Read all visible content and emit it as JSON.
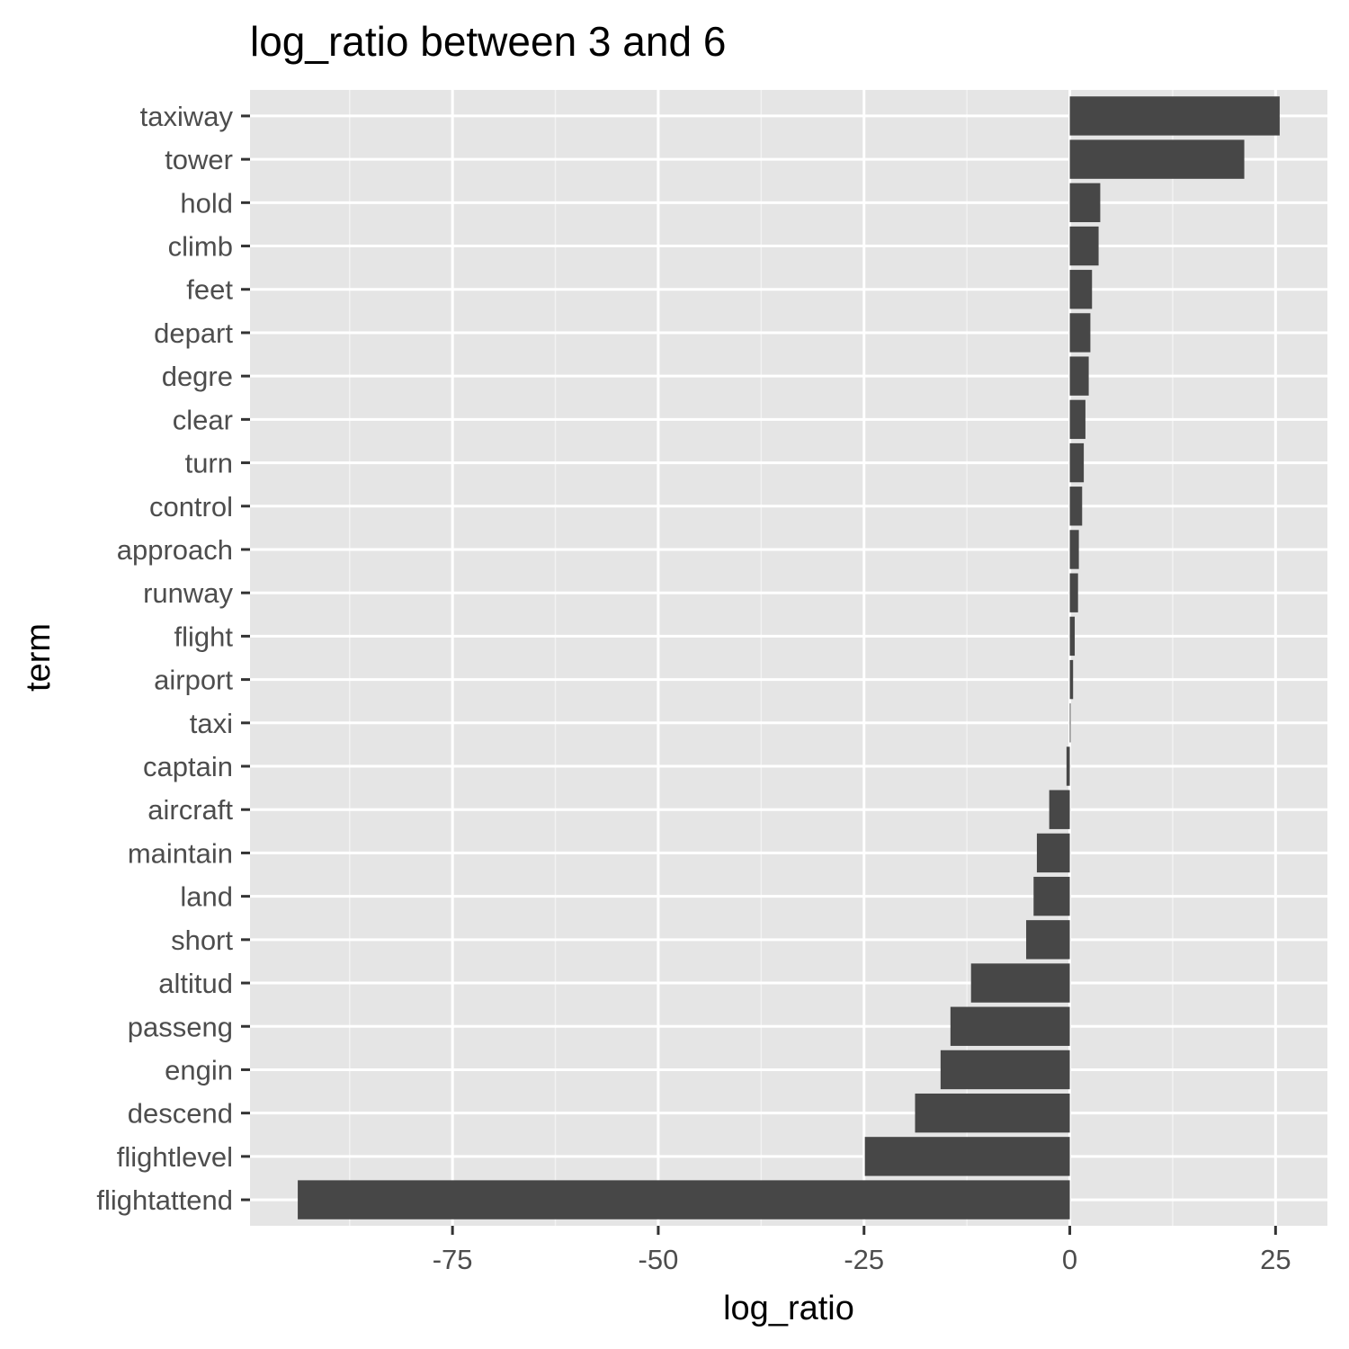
{
  "chart_data": {
    "type": "bar",
    "orientation": "horizontal",
    "title": "log_ratio between 3 and 6",
    "xlabel": "log_ratio",
    "ylabel": "term",
    "xlim": [
      -99.6,
      31.3
    ],
    "xticks": [
      -75,
      -50,
      -25,
      0,
      25
    ],
    "xtick_labels": [
      "-75",
      "-50",
      "-25",
      "0",
      "25"
    ],
    "grid": true,
    "legend": "none",
    "categories": [
      "taxiway",
      "tower",
      "hold",
      "climb",
      "feet",
      "depart",
      "degre",
      "clear",
      "turn",
      "control",
      "approach",
      "runway",
      "flight",
      "airport",
      "taxi",
      "captain",
      "aircraft",
      "maintain",
      "land",
      "short",
      "altitud",
      "passeng",
      "engin",
      "descend",
      "flightlevel",
      "flightattend"
    ],
    "values": [
      25.5,
      21.2,
      3.7,
      3.5,
      2.7,
      2.5,
      2.3,
      1.9,
      1.7,
      1.5,
      1.1,
      1.0,
      0.6,
      0.4,
      0.1,
      -0.4,
      -2.5,
      -4.0,
      -4.4,
      -5.3,
      -12.0,
      -14.5,
      -15.7,
      -18.8,
      -24.9,
      -93.8
    ],
    "colors": {
      "bar": "#474747",
      "panel": "#e5e5e5",
      "grid_major": "#ffffff",
      "grid_minor": "#f2f2f2",
      "tick_text": "#4d4d4d",
      "tick_mark": "#333333"
    }
  }
}
